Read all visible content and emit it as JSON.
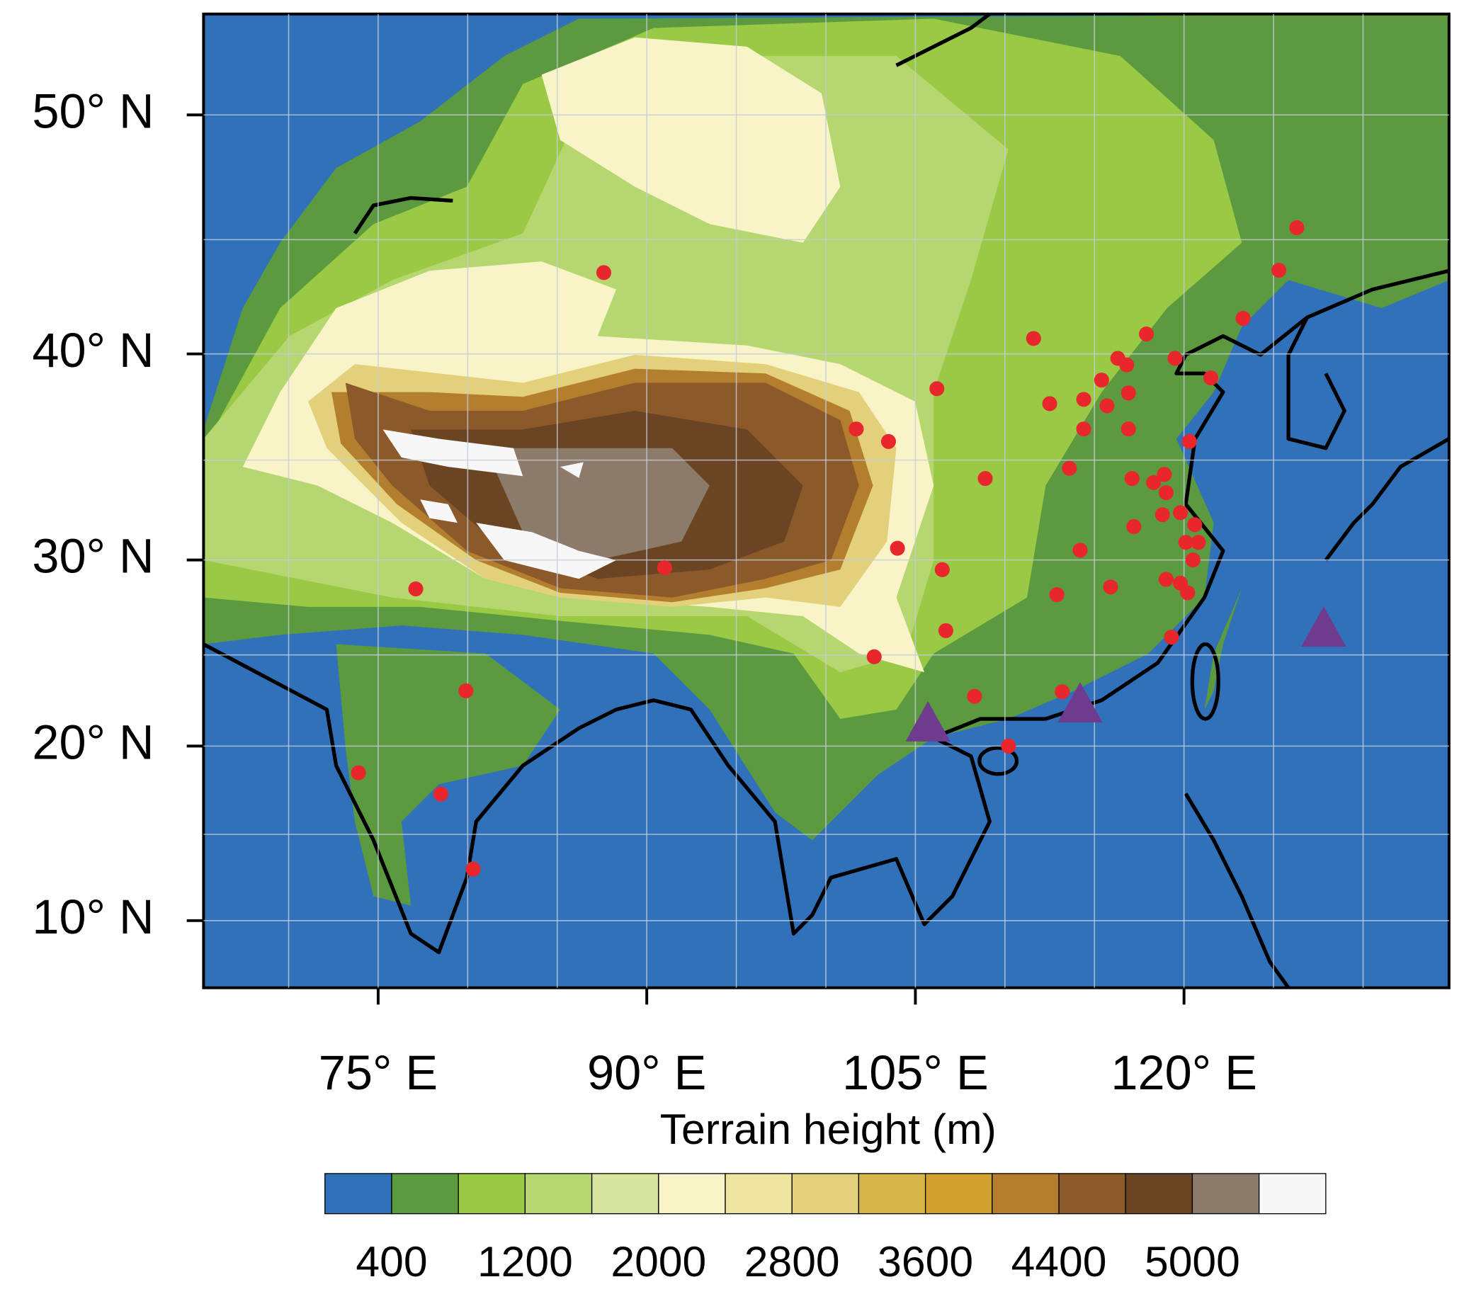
{
  "map": {
    "type": "map",
    "projection": "mercator",
    "xlim": [
      65.25,
      134.8
    ],
    "ylim": [
      6.05,
      53.7
    ],
    "xticks": [
      {
        "value": 75,
        "label": "75° E"
      },
      {
        "value": 90,
        "label": "90° E"
      },
      {
        "value": 105,
        "label": "105° E"
      },
      {
        "value": 120,
        "label": "120° E"
      }
    ],
    "yticks": [
      {
        "value": 10,
        "label": "10° N"
      },
      {
        "value": 20,
        "label": "20° N"
      },
      {
        "value": 30,
        "label": "30° N"
      },
      {
        "value": 40,
        "label": "40° N"
      },
      {
        "value": 50,
        "label": "50° N"
      }
    ],
    "xgrid": [
      70,
      75,
      80,
      85,
      90,
      95,
      100,
      105,
      110,
      115,
      120,
      125,
      130
    ],
    "ygrid": [
      10,
      15,
      20,
      25,
      30,
      35,
      40,
      45,
      50
    ],
    "grid": true,
    "ocean_color": "#3171b9",
    "stations": {
      "color": "#e8262b",
      "lon": [
        87.6,
        111.6,
        106.2,
        101.7,
        103.5,
        112.5,
        126.3,
        125.3,
        123.3,
        117.9,
        116.3,
        116.8,
        115.4,
        114.4,
        115.7,
        116.9,
        119.5,
        121.5,
        114.4,
        116.9,
        120.3,
        113.6,
        108.9,
        117.1,
        118.3,
        119.0,
        118.9,
        104.0,
        106.5,
        114.2,
        117.2,
        118.8,
        119.8,
        120.6,
        120.8,
        120.1,
        120.5,
        119.0,
        119.8,
        115.9,
        112.9,
        120.2,
        91.0,
        77.1,
        106.7,
        102.7,
        119.3,
        108.3,
        113.2,
        110.2,
        79.9,
        73.9,
        78.5,
        80.3
      ],
      "lat": [
        43.6,
        40.7,
        38.4,
        36.5,
        35.9,
        37.7,
        45.5,
        43.7,
        41.6,
        40.9,
        39.8,
        39.5,
        38.8,
        37.9,
        37.6,
        38.2,
        39.8,
        38.9,
        36.5,
        36.5,
        35.9,
        34.6,
        34.1,
        34.1,
        33.9,
        33.4,
        34.3,
        30.6,
        29.5,
        30.5,
        31.7,
        32.3,
        32.4,
        31.8,
        30.9,
        30.9,
        30.0,
        29.0,
        28.8,
        28.6,
        28.2,
        28.3,
        29.6,
        28.5,
        26.3,
        24.9,
        25.95,
        22.75,
        23.0,
        20.0,
        23.05,
        18.5,
        17.3,
        13.0
      ]
    },
    "sites": {
      "color": "#6e3b8f",
      "lon": [
        105.7,
        114.2,
        127.8
      ],
      "lat": [
        21.25,
        22.3,
        26.4
      ]
    }
  },
  "colorbar": {
    "title": "Terrain height (m)",
    "colors": [
      "#3171b9",
      "#5b9a3f",
      "#99c945",
      "#b6d66f",
      "#d6e6a0",
      "#f8f4c8",
      "#efe3a0",
      "#e3d07a",
      "#d4b546",
      "#d1a02e",
      "#b37e2e",
      "#8c5a2a",
      "#6b4423",
      "#8c7a6a",
      "#f7f7f7"
    ],
    "ticks": [
      400,
      1200,
      2000,
      2800,
      3600,
      4400,
      5000
    ]
  }
}
